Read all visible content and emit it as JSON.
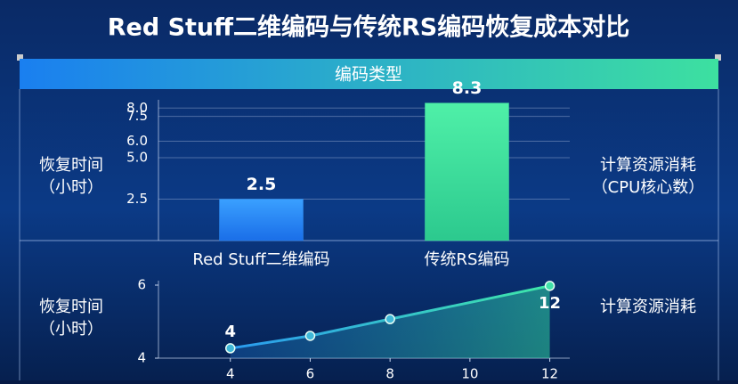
{
  "title": "Red Stuff二维编码与传统RS编码恢复成本对比",
  "chart_data": [
    {
      "type": "bar",
      "x_label": "编码类型",
      "y_label": [
        "恢复时间",
        "（小时）"
      ],
      "y2_label": [
        "计算资源消耗",
        "（CPU核心数）"
      ],
      "categories": [
        "Red Stuff二维编码",
        "传统RS编码"
      ],
      "values": [
        2.5,
        8.3
      ],
      "colors": [
        "#2a8af2",
        "#3fe3a0"
      ],
      "ylim": [
        0,
        8.5
      ],
      "yticks": [
        2.5,
        {
          "value": 5,
          "label": "5.0"
        },
        {
          "value": 6,
          "label": "6.0"
        },
        7.5,
        {
          "value": 8,
          "label": "8.0"
        }
      ],
      "grid": true
    },
    {
      "type": "line",
      "y_label": [
        "恢复时间",
        "（小时）"
      ],
      "y2_label": [
        "计算资源消耗"
      ],
      "x": [
        4,
        6,
        8,
        12
      ],
      "values": [
        4.27,
        4.61,
        5.07,
        5.98
      ],
      "color": "#3fe0a8",
      "xlim": [
        2.2,
        12.5
      ],
      "xticks": [
        4,
        6,
        8,
        10,
        12
      ],
      "ylim": [
        4,
        6
      ],
      "yticks": [
        4,
        6
      ],
      "annotations": [
        {
          "text": "4",
          "x": 4
        },
        {
          "text": "12",
          "x": 12
        }
      ]
    }
  ]
}
